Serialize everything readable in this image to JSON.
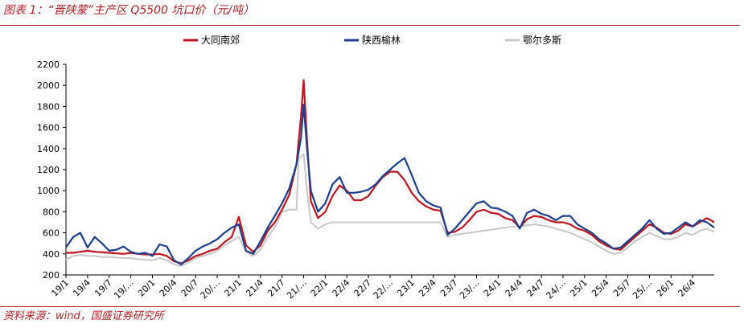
{
  "figure": {
    "title": "图表 1：“晋陕蒙”主产区 Q5500 坑口价（元/吨）",
    "source": "资料来源：wind，国盛证券研究所"
  },
  "chart_data": {
    "type": "line",
    "legend_position": "top",
    "grid": false,
    "ylim": [
      200,
      2200
    ],
    "yticks": [
      200,
      400,
      600,
      800,
      1000,
      1200,
      1400,
      1600,
      1800,
      2000,
      2200
    ],
    "xlim": [
      "2019-01",
      "2026-07"
    ],
    "xtick_labels": [
      "19/1",
      "19/4",
      "19/7",
      "19/…",
      "20/1",
      "20/4",
      "20/7",
      "20/…",
      "21/1",
      "21/4",
      "21/7",
      "21/…",
      "22/1",
      "22/4",
      "22/7",
      "22/…",
      "23/1",
      "23/4",
      "23/7",
      "23/…",
      "24/1",
      "24/4",
      "24/7",
      "24/…",
      "25/1",
      "25/4",
      "25/7",
      "25/…",
      "26/1",
      "26/4"
    ],
    "xticks_at": [
      "2019-01",
      "2019-04",
      "2019-07",
      "2019-10",
      "2020-01",
      "2020-04",
      "2020-07",
      "2020-10",
      "2021-01",
      "2021-04",
      "2021-07",
      "2021-10",
      "2022-01",
      "2022-04",
      "2022-07",
      "2022-10",
      "2023-01",
      "2023-04",
      "2023-07",
      "2023-10",
      "2024-01",
      "2024-04",
      "2024-07",
      "2024-10",
      "2025-01",
      "2025-04",
      "2025-07",
      "2025-10",
      "2026-01",
      "2026-04"
    ],
    "series": [
      {
        "name": "大同南郊",
        "color": "#c0141e",
        "points": [
          [
            "2019-01",
            410
          ],
          [
            "2019-02",
            410
          ],
          [
            "2019-03",
            420
          ],
          [
            "2019-04",
            430
          ],
          [
            "2019-05",
            420
          ],
          [
            "2019-06",
            415
          ],
          [
            "2019-07",
            410
          ],
          [
            "2019-08",
            405
          ],
          [
            "2019-09",
            400
          ],
          [
            "2019-10",
            410
          ],
          [
            "2019-11",
            400
          ],
          [
            "2019-12",
            395
          ],
          [
            "2020-01",
            395
          ],
          [
            "2020-02",
            400
          ],
          [
            "2020-03",
            380
          ],
          [
            "2020-04",
            330
          ],
          [
            "2020-05",
            310
          ],
          [
            "2020-06",
            340
          ],
          [
            "2020-07",
            380
          ],
          [
            "2020-08",
            400
          ],
          [
            "2020-09",
            430
          ],
          [
            "2020-10",
            450
          ],
          [
            "2020-11",
            510
          ],
          [
            "2020-12",
            560
          ],
          [
            "2021-01",
            750
          ],
          [
            "2021-02",
            480
          ],
          [
            "2021-03",
            420
          ],
          [
            "2021-04",
            480
          ],
          [
            "2021-05",
            620
          ],
          [
            "2021-06",
            700
          ],
          [
            "2021-07",
            820
          ],
          [
            "2021-08",
            960
          ],
          [
            "2021-09",
            1250
          ],
          [
            "2021-09-20",
            1700
          ],
          [
            "2021-10",
            2050
          ],
          [
            "2021-10-15",
            1480
          ],
          [
            "2021-11",
            900
          ],
          [
            "2021-12",
            740
          ],
          [
            "2022-01",
            800
          ],
          [
            "2022-02",
            950
          ],
          [
            "2022-03",
            1050
          ],
          [
            "2022-04",
            1000
          ],
          [
            "2022-05",
            910
          ],
          [
            "2022-06",
            910
          ],
          [
            "2022-07",
            950
          ],
          [
            "2022-08",
            1050
          ],
          [
            "2022-09",
            1130
          ],
          [
            "2022-10",
            1180
          ],
          [
            "2022-11",
            1180
          ],
          [
            "2022-12",
            1100
          ],
          [
            "2023-01",
            980
          ],
          [
            "2023-02",
            900
          ],
          [
            "2023-03",
            850
          ],
          [
            "2023-04",
            820
          ],
          [
            "2023-05",
            810
          ],
          [
            "2023-06",
            600
          ],
          [
            "2023-07",
            610
          ],
          [
            "2023-08",
            650
          ],
          [
            "2023-09",
            720
          ],
          [
            "2023-10",
            800
          ],
          [
            "2023-11",
            820
          ],
          [
            "2023-12",
            790
          ],
          [
            "2024-01",
            780
          ],
          [
            "2024-02",
            740
          ],
          [
            "2024-03",
            720
          ],
          [
            "2024-04",
            650
          ],
          [
            "2024-05",
            730
          ],
          [
            "2024-06",
            760
          ],
          [
            "2024-07",
            750
          ],
          [
            "2024-08",
            720
          ],
          [
            "2024-09",
            700
          ],
          [
            "2024-10",
            700
          ],
          [
            "2024-11",
            680
          ],
          [
            "2024-12",
            640
          ],
          [
            "2025-01",
            620
          ],
          [
            "2025-02",
            580
          ],
          [
            "2025-03",
            520
          ],
          [
            "2025-04",
            480
          ],
          [
            "2025-05",
            450
          ],
          [
            "2025-06",
            440
          ],
          [
            "2025-07",
            500
          ],
          [
            "2025-08",
            560
          ],
          [
            "2025-09",
            620
          ],
          [
            "2025-10",
            680
          ],
          [
            "2025-11",
            650
          ],
          [
            "2025-12",
            600
          ],
          [
            "2026-01",
            590
          ],
          [
            "2026-02",
            620
          ],
          [
            "2026-03",
            680
          ],
          [
            "2026-04",
            660
          ],
          [
            "2026-05",
            700
          ],
          [
            "2026-06",
            740
          ],
          [
            "2026-07",
            700
          ]
        ]
      },
      {
        "name": "陕西榆林",
        "color": "#1a3f8f",
        "points": [
          [
            "2019-01",
            460
          ],
          [
            "2019-02",
            560
          ],
          [
            "2019-03",
            600
          ],
          [
            "2019-04",
            460
          ],
          [
            "2019-05",
            560
          ],
          [
            "2019-06",
            500
          ],
          [
            "2019-07",
            430
          ],
          [
            "2019-08",
            440
          ],
          [
            "2019-09",
            470
          ],
          [
            "2019-10",
            420
          ],
          [
            "2019-11",
            400
          ],
          [
            "2019-12",
            410
          ],
          [
            "2020-01",
            380
          ],
          [
            "2020-02",
            490
          ],
          [
            "2020-03",
            470
          ],
          [
            "2020-04",
            340
          ],
          [
            "2020-05",
            300
          ],
          [
            "2020-06",
            360
          ],
          [
            "2020-07",
            430
          ],
          [
            "2020-08",
            470
          ],
          [
            "2020-09",
            500
          ],
          [
            "2020-10",
            540
          ],
          [
            "2020-11",
            600
          ],
          [
            "2020-12",
            650
          ],
          [
            "2021-01",
            680
          ],
          [
            "2021-02",
            430
          ],
          [
            "2021-03",
            400
          ],
          [
            "2021-04",
            520
          ],
          [
            "2021-05",
            650
          ],
          [
            "2021-06",
            760
          ],
          [
            "2021-07",
            880
          ],
          [
            "2021-08",
            1020
          ],
          [
            "2021-09",
            1250
          ],
          [
            "2021-09-20",
            1500
          ],
          [
            "2021-10",
            1820
          ],
          [
            "2021-10-15",
            1400
          ],
          [
            "2021-11",
            1000
          ],
          [
            "2021-12",
            800
          ],
          [
            "2022-01",
            880
          ],
          [
            "2022-02",
            1060
          ],
          [
            "2022-03",
            1130
          ],
          [
            "2022-04",
            980
          ],
          [
            "2022-05",
            980
          ],
          [
            "2022-06",
            990
          ],
          [
            "2022-07",
            1010
          ],
          [
            "2022-08",
            1060
          ],
          [
            "2022-09",
            1140
          ],
          [
            "2022-10",
            1200
          ],
          [
            "2022-11",
            1260
          ],
          [
            "2022-12",
            1310
          ],
          [
            "2023-01",
            1150
          ],
          [
            "2023-02",
            980
          ],
          [
            "2023-03",
            900
          ],
          [
            "2023-04",
            860
          ],
          [
            "2023-05",
            840
          ],
          [
            "2023-06",
            580
          ],
          [
            "2023-07",
            640
          ],
          [
            "2023-08",
            720
          ],
          [
            "2023-09",
            800
          ],
          [
            "2023-10",
            880
          ],
          [
            "2023-11",
            900
          ],
          [
            "2023-12",
            840
          ],
          [
            "2024-01",
            830
          ],
          [
            "2024-02",
            800
          ],
          [
            "2024-03",
            760
          ],
          [
            "2024-04",
            640
          ],
          [
            "2024-05",
            790
          ],
          [
            "2024-06",
            820
          ],
          [
            "2024-07",
            780
          ],
          [
            "2024-08",
            760
          ],
          [
            "2024-09",
            720
          ],
          [
            "2024-10",
            760
          ],
          [
            "2024-11",
            760
          ],
          [
            "2024-12",
            680
          ],
          [
            "2025-01",
            640
          ],
          [
            "2025-02",
            600
          ],
          [
            "2025-03",
            540
          ],
          [
            "2025-04",
            500
          ],
          [
            "2025-05",
            450
          ],
          [
            "2025-06",
            460
          ],
          [
            "2025-07",
            520
          ],
          [
            "2025-08",
            580
          ],
          [
            "2025-09",
            640
          ],
          [
            "2025-10",
            720
          ],
          [
            "2025-11",
            640
          ],
          [
            "2025-12",
            590
          ],
          [
            "2026-01",
            600
          ],
          [
            "2026-02",
            650
          ],
          [
            "2026-03",
            700
          ],
          [
            "2026-04",
            660
          ],
          [
            "2026-05",
            720
          ],
          [
            "2026-06",
            700
          ],
          [
            "2026-07",
            650
          ]
        ]
      },
      {
        "name": "鄂尔多斯",
        "color": "#c8c8c8",
        "points": [
          [
            "2019-01",
            345
          ],
          [
            "2019-02",
            380
          ],
          [
            "2019-03",
            390
          ],
          [
            "2019-04",
            380
          ],
          [
            "2019-05",
            380
          ],
          [
            "2019-06",
            370
          ],
          [
            "2019-07",
            370
          ],
          [
            "2019-08",
            365
          ],
          [
            "2019-09",
            360
          ],
          [
            "2019-10",
            360
          ],
          [
            "2019-11",
            350
          ],
          [
            "2019-12",
            345
          ],
          [
            "2020-01",
            340
          ],
          [
            "2020-02",
            360
          ],
          [
            "2020-03",
            340
          ],
          [
            "2020-04",
            300
          ],
          [
            "2020-05",
            285
          ],
          [
            "2020-06",
            320
          ],
          [
            "2020-07",
            360
          ],
          [
            "2020-08",
            380
          ],
          [
            "2020-09",
            400
          ],
          [
            "2020-10",
            430
          ],
          [
            "2020-11",
            480
          ],
          [
            "2020-12",
            520
          ],
          [
            "2021-01",
            560
          ],
          [
            "2021-02",
            420
          ],
          [
            "2021-03",
            380
          ],
          [
            "2021-04",
            440
          ],
          [
            "2021-05",
            560
          ],
          [
            "2021-06",
            650
          ],
          [
            "2021-07",
            800
          ],
          [
            "2021-08",
            820
          ],
          [
            "2021-09",
            820
          ],
          [
            "2021-09-10",
            1300
          ],
          [
            "2021-10",
            1350
          ],
          [
            "2021-10-15",
            1000
          ],
          [
            "2021-11",
            700
          ],
          [
            "2021-12",
            640
          ],
          [
            "2022-01",
            680
          ],
          [
            "2022-02",
            700
          ],
          [
            "2022-03",
            700
          ],
          [
            "2022-04",
            700
          ],
          [
            "2022-05",
            700
          ],
          [
            "2022-06",
            700
          ],
          [
            "2022-07",
            700
          ],
          [
            "2022-08",
            700
          ],
          [
            "2022-09",
            700
          ],
          [
            "2022-10",
            700
          ],
          [
            "2022-11",
            700
          ],
          [
            "2022-12",
            700
          ],
          [
            "2023-01",
            700
          ],
          [
            "2023-02",
            700
          ],
          [
            "2023-03",
            700
          ],
          [
            "2023-04",
            700
          ],
          [
            "2023-05",
            700
          ],
          [
            "2023-06",
            560
          ],
          [
            "2023-07",
            580
          ],
          [
            "2023-08",
            590
          ],
          [
            "2023-09",
            600
          ],
          [
            "2023-10",
            610
          ],
          [
            "2023-11",
            620
          ],
          [
            "2023-12",
            630
          ],
          [
            "2024-01",
            640
          ],
          [
            "2024-02",
            650
          ],
          [
            "2024-03",
            660
          ],
          [
            "2024-04",
            660
          ],
          [
            "2024-05",
            670
          ],
          [
            "2024-06",
            680
          ],
          [
            "2024-07",
            670
          ],
          [
            "2024-08",
            660
          ],
          [
            "2024-09",
            640
          ],
          [
            "2024-10",
            620
          ],
          [
            "2024-11",
            600
          ],
          [
            "2024-12",
            570
          ],
          [
            "2025-01",
            540
          ],
          [
            "2025-02",
            510
          ],
          [
            "2025-03",
            470
          ],
          [
            "2025-04",
            430
          ],
          [
            "2025-05",
            400
          ],
          [
            "2025-06",
            410
          ],
          [
            "2025-07",
            460
          ],
          [
            "2025-08",
            520
          ],
          [
            "2025-09",
            560
          ],
          [
            "2025-10",
            600
          ],
          [
            "2025-11",
            570
          ],
          [
            "2025-12",
            540
          ],
          [
            "2026-01",
            540
          ],
          [
            "2026-02",
            560
          ],
          [
            "2026-03",
            600
          ],
          [
            "2026-04",
            580
          ],
          [
            "2026-05",
            620
          ],
          [
            "2026-06",
            640
          ],
          [
            "2026-07",
            610
          ]
        ]
      }
    ]
  }
}
